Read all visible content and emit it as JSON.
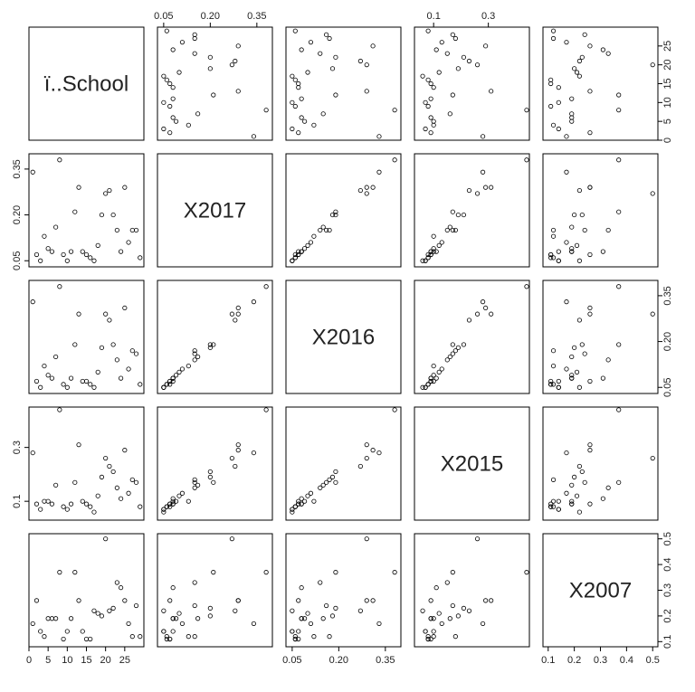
{
  "chart_data": {
    "type": "pairs",
    "point_color": "#000000",
    "variables": [
      {
        "name": "ï..School",
        "lim": [
          0,
          30
        ],
        "ticks": [
          0,
          5,
          10,
          15,
          20,
          25
        ],
        "values": [
          1,
          2,
          3,
          4,
          5,
          6,
          7,
          8,
          9,
          10,
          11,
          12,
          13,
          14,
          15,
          16,
          17,
          18,
          19,
          20,
          21,
          22,
          23,
          24,
          25,
          26,
          27,
          28,
          29
        ]
      },
      {
        "name": "X2017",
        "lim": [
          0.03,
          0.4
        ],
        "ticks": [
          {
            "value": 0.05,
            "label": "0.05"
          },
          {
            "value": 0.2,
            "label": "0.20"
          },
          {
            "value": 0.35,
            "label": "0.35"
          }
        ],
        "values": [
          0.34,
          0.07,
          0.05,
          0.13,
          0.09,
          0.08,
          0.16,
          0.38,
          0.07,
          0.05,
          0.08,
          0.21,
          0.29,
          0.08,
          0.07,
          0.06,
          0.05,
          0.1,
          0.2,
          0.27,
          0.28,
          0.2,
          0.15,
          0.08,
          0.29,
          0.11,
          0.15,
          0.15,
          0.06
        ]
      },
      {
        "name": "X2016",
        "lim": [
          0.03,
          0.4
        ],
        "ticks": [
          {
            "value": 0.05,
            "label": "0.05"
          },
          {
            "value": 0.2,
            "label": "0.20"
          },
          {
            "value": 0.35,
            "label": "0.35"
          }
        ],
        "values": [
          0.33,
          0.07,
          0.05,
          0.12,
          0.09,
          0.08,
          0.15,
          0.38,
          0.06,
          0.05,
          0.08,
          0.19,
          0.29,
          0.07,
          0.07,
          0.06,
          0.05,
          0.1,
          0.18,
          0.29,
          0.27,
          0.19,
          0.14,
          0.08,
          0.31,
          0.11,
          0.17,
          0.16,
          0.06
        ]
      },
      {
        "name": "X2015",
        "lim": [
          0.03,
          0.45
        ],
        "ticks": [
          0.1,
          0.3
        ],
        "values": [
          0.28,
          0.09,
          0.07,
          0.1,
          0.1,
          0.09,
          0.16,
          0.44,
          0.08,
          0.07,
          0.09,
          0.17,
          0.31,
          0.1,
          0.09,
          0.08,
          0.06,
          0.12,
          0.19,
          0.26,
          0.23,
          0.21,
          0.15,
          0.11,
          0.29,
          0.13,
          0.18,
          0.17,
          0.08
        ]
      },
      {
        "name": "X2007",
        "lim": [
          0.08,
          0.52
        ],
        "ticks": [
          0.1,
          0.2,
          0.3,
          0.4,
          0.5
        ],
        "values": [
          0.17,
          0.26,
          0.14,
          0.12,
          0.19,
          0.19,
          0.19,
          0.37,
          0.11,
          0.14,
          0.19,
          0.37,
          0.26,
          0.14,
          0.11,
          0.11,
          0.22,
          0.21,
          0.2,
          0.5,
          0.22,
          0.23,
          0.33,
          0.31,
          0.26,
          0.17,
          0.12,
          0.24,
          0.12
        ]
      }
    ]
  }
}
